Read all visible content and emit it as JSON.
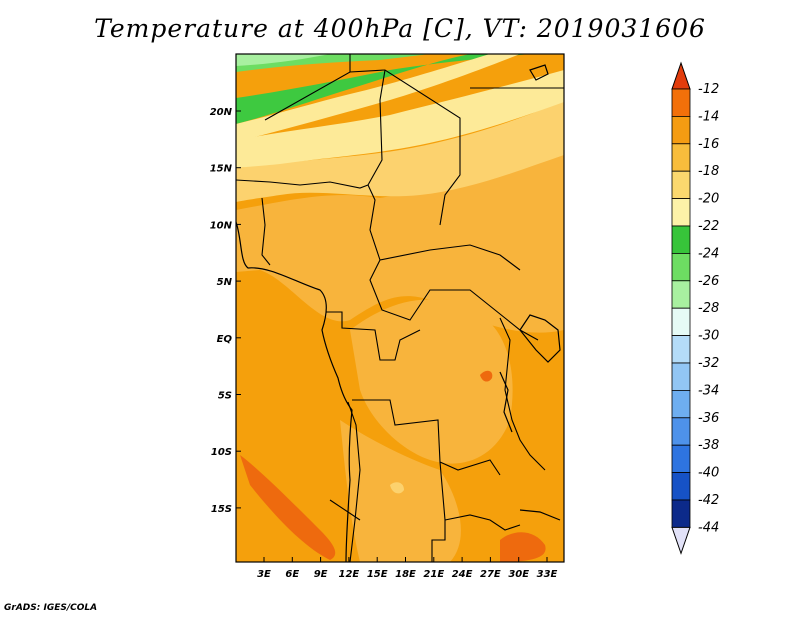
{
  "title": "Temperature at 400hPa [C], VT: 2019031606",
  "credit": "GrADS: IGES/COLA",
  "lat_labels": [
    "20N",
    "15N",
    "10N",
    "5N",
    "EQ",
    "5S",
    "10S",
    "15S"
  ],
  "lon_labels": [
    "3E",
    "6E",
    "9E",
    "12E",
    "15E",
    "18E",
    "21E",
    "24E",
    "27E",
    "30E",
    "33E"
  ],
  "colorbar": {
    "labels": [
      "-12",
      "-14",
      "-16",
      "-18",
      "-20",
      "-22",
      "-24",
      "-26",
      "-28",
      "-30",
      "-32",
      "-34",
      "-36",
      "-38",
      "-40",
      "-42",
      "-44"
    ],
    "colors": [
      "#e8400c",
      "#f2700a",
      "#f59c12",
      "#f8bd3c",
      "#fbd86e",
      "#fdf2a8",
      "#37c43a",
      "#6ddd62",
      "#a8f0a0",
      "#e6fbf6",
      "#b4dcf8",
      "#92c6f4",
      "#6eaef0",
      "#4e92ea",
      "#2e74e0",
      "#1652c6",
      "#0c2a8a"
    ],
    "top_arrow_color": "#e23c0c",
    "bottom_arrow_color": "#e2e2f8"
  },
  "map_colors": {
    "c12": "#ee6a0e",
    "c14": "#f5a00c",
    "c16": "#f8b43c",
    "c18": "#fcd26e",
    "c20": "#fdea98",
    "c22": "#3ec940",
    "c24": "#6ddd62",
    "c26": "#a8f0a0"
  }
}
